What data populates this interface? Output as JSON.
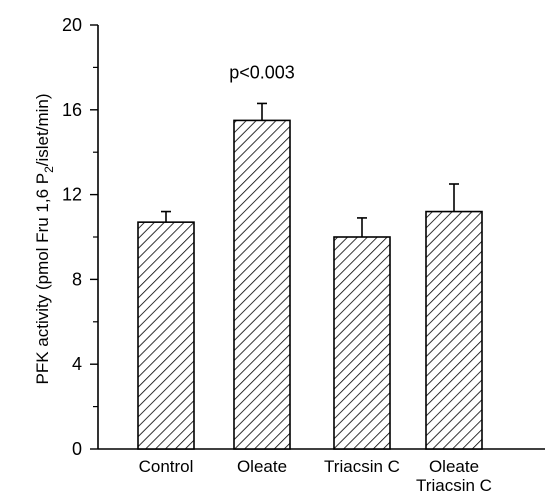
{
  "chart_data": {
    "type": "bar",
    "title": "",
    "xlabel": "",
    "ylabel": {
      "prefix": "PFK activity (pmol Fru 1,6 P",
      "subscript": "2",
      "suffix": "/islet/min)"
    },
    "ylim": [
      0,
      20
    ],
    "y_ticks": [
      "0",
      "4",
      "8",
      "12",
      "16",
      "20"
    ],
    "categories": [
      {
        "lines": [
          "Control"
        ]
      },
      {
        "lines": [
          "Oleate"
        ]
      },
      {
        "lines": [
          "Triacsin C"
        ]
      },
      {
        "lines": [
          "Oleate",
          "Triacsin C"
        ]
      }
    ],
    "values": [
      10.7,
      15.5,
      10.0,
      11.2
    ],
    "errors": [
      0.5,
      0.8,
      0.9,
      1.3
    ],
    "annotations": [
      {
        "category_index": 1,
        "text": "p<0.003"
      }
    ],
    "bar_fill": "diagonal-hatch",
    "colors": {
      "bar_stroke": "#000000",
      "hatch": "#000000"
    },
    "grid": false,
    "legend": "none"
  }
}
